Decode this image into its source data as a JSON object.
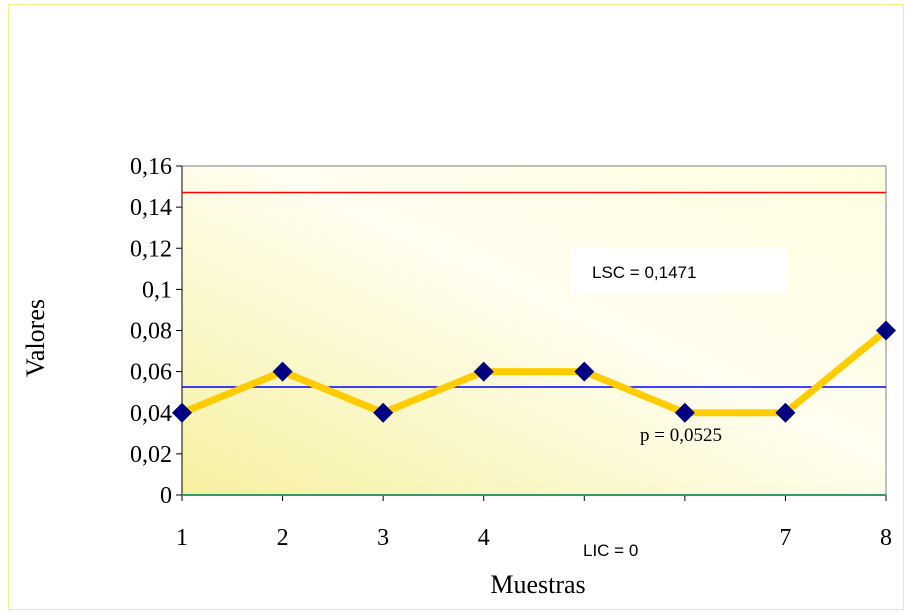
{
  "chart_data": {
    "type": "line",
    "title": "",
    "xlabel": "Muestras",
    "ylabel": "Valores",
    "x": [
      1,
      2,
      3,
      4,
      5,
      6,
      7,
      8
    ],
    "x_tick_labels": [
      "1",
      "2",
      "3",
      "4",
      "",
      "",
      "7",
      "8"
    ],
    "y_tick_labels": [
      "0",
      "0,02",
      "0,04",
      "0,06",
      "0,08",
      "0,1",
      "0,12",
      "0,14",
      "0,16"
    ],
    "ylim": [
      0,
      0.16
    ],
    "grid": false,
    "series": [
      {
        "values": [
          0.04,
          0.06,
          0.04,
          0.06,
          0.06,
          0.04,
          0.04,
          0.08
        ],
        "color": "#ffcc00",
        "marker_color": "#000080"
      }
    ],
    "control_lines": [
      {
        "role": "upper",
        "value": 0.1471,
        "color": "#ff0000",
        "label": "LSC = 0,1471"
      },
      {
        "role": "center",
        "value": 0.0525,
        "color": "#0000ff",
        "label": "p = 0,0525"
      },
      {
        "role": "lower",
        "value": 0,
        "color": "#339966",
        "label": "LIC = 0"
      }
    ],
    "colors": {
      "plot_gradient_from": "#fffde0",
      "plot_gradient_to": "#f6f0a0",
      "frame_border": "#f2ef8a"
    }
  }
}
